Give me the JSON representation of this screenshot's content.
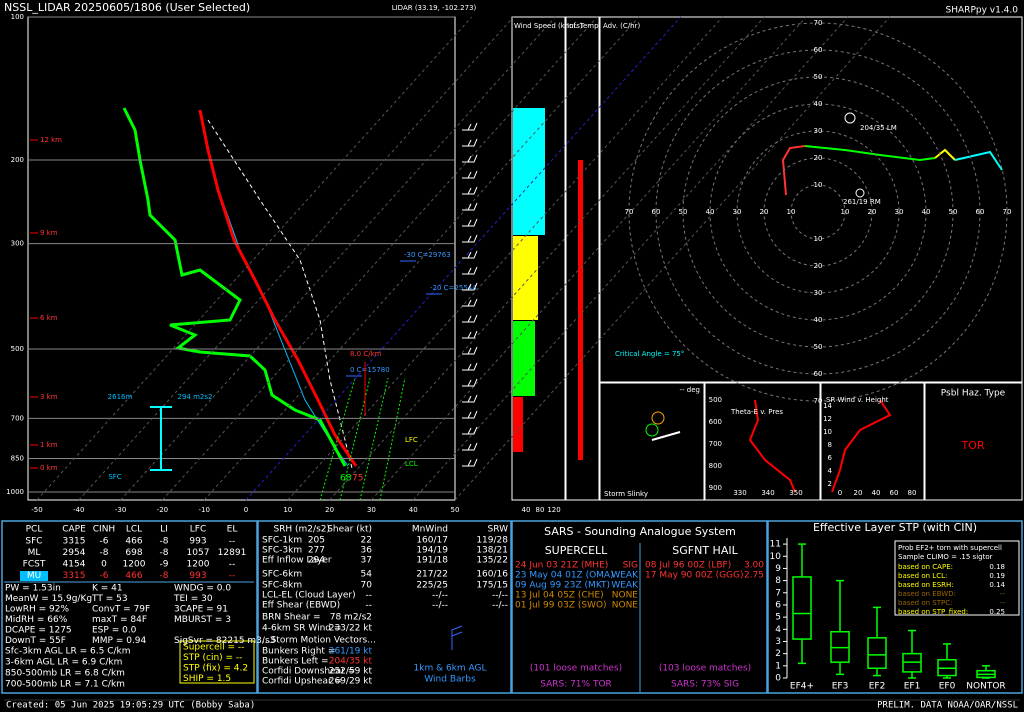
{
  "header": {
    "title": "NSSL_LIDAR  20250605/1806  (User Selected)",
    "location": "LIDAR (33.19, -102.273)",
    "version": "SHARPpy v1.4.0"
  },
  "skewt": {
    "pressure_labels": [
      100,
      200,
      300,
      500,
      700,
      850,
      1000
    ],
    "temp_labels": [
      -50,
      -40,
      -30,
      -20,
      -10,
      0,
      10,
      20,
      30,
      40,
      50
    ],
    "height_labels": [
      "12 km",
      "9 km",
      "6 km",
      "3 km",
      "1 km",
      "0 km"
    ],
    "levels": [
      "-30 C=29763",
      "-20 C=25544",
      "0 C=15780"
    ],
    "lapse": "8.0 C/km",
    "layer_depth": "2616m",
    "layer_srh": "294 m2s2",
    "sfc": "SFC",
    "lfc": "LFC",
    "lcl": "LCL",
    "sfc_dew": "68",
    "sfc_temp": "75"
  },
  "wind_panel": {
    "speed_title": "Wind Speed (knots)",
    "adv_title": "Inf. Temp. Adv. (C/hr)",
    "ticks": [
      40,
      80,
      120
    ]
  },
  "hodograph": {
    "rings": [
      10,
      20,
      30,
      40,
      50,
      60,
      70
    ],
    "lm": "204/35 LM",
    "rm": "261/19 RM",
    "critical": "Critical Angle = 75°"
  },
  "insets": {
    "slinky_deg": "-- deg",
    "slinky": "Storm Slinky",
    "theta_title": "Theta-E v. Pres",
    "theta_y": [
      500,
      600,
      700,
      800,
      900
    ],
    "theta_x": [
      330,
      340,
      350
    ],
    "srw_title": "SR Wind v. Height",
    "srw_y": [
      2,
      4,
      6,
      8,
      10,
      12,
      14
    ],
    "srw_x": [
      0,
      20,
      40,
      60,
      80
    ],
    "haz_title": "Psbl Haz. Type",
    "haz": "TOR"
  },
  "parcels": {
    "header": [
      "PCL",
      "CAPE",
      "CINH",
      "LCL",
      "LI",
      "LFC",
      "EL"
    ],
    "rows": [
      [
        "SFC",
        3315,
        -6,
        466,
        -8,
        993,
        "--"
      ],
      [
        "ML",
        2954,
        -8,
        698,
        -8,
        1057,
        12891
      ],
      [
        "FCST",
        4154,
        0,
        1200,
        -9,
        1200,
        "--"
      ],
      [
        "MU",
        3315,
        -6,
        466,
        -8,
        993,
        "--"
      ]
    ]
  },
  "thermo": [
    [
      "PW = 1.53in",
      "K = 41",
      "WNDG = 0.0"
    ],
    [
      "MeanW = 15.9g/Kg",
      "TT = 53",
      "TEI = 30"
    ],
    [
      "LowRH = 92%",
      "ConvT = 79F",
      "3CAPE = 91"
    ],
    [
      "MidRH = 66%",
      "maxT = 84F",
      "MBURST = 3"
    ],
    [
      "DCAPE = 1275",
      "ESP = 0.0"
    ],
    [
      "DownT = 55F",
      "MMP = 0.94",
      "SigSvr = 82215 m3/s3"
    ]
  ],
  "lapse_rates": [
    "Sfc-3km AGL LR = 6.5 C/km",
    "3-6km AGL LR = 6.9 C/km",
    "850-500mb LR = 6.8 C/km",
    "700-500mb LR = 7.1 C/km"
  ],
  "indices": [
    "Supercell = --",
    "STP (cin) = --",
    "STP (fix) = 4.2",
    "SHIP = 1.5"
  ],
  "kinematics": {
    "header": [
      "SRH (m2/s2)",
      "Shear (kt)",
      "MnWind",
      "SRW"
    ],
    "rows": [
      [
        "SFC-1km",
        205,
        22,
        "160/17",
        "119/28"
      ],
      [
        "SFC-3km",
        277,
        36,
        "194/19",
        "138/21"
      ],
      [
        "Eff Inflow Layer",
        294,
        37,
        "191/18",
        "135/22"
      ],
      [
        "SFC-6km",
        null,
        54,
        "217/22",
        "160/16"
      ],
      [
        "SFC-8km",
        null,
        70,
        "225/25",
        "175/15"
      ],
      [
        "LCL-EL (Cloud Layer)",
        null,
        "--",
        "--/--",
        "--/--"
      ],
      [
        "Eff Shear (EBWD)",
        null,
        "--",
        "--/--",
        "--/--"
      ]
    ],
    "extra": [
      [
        "BRN Shear =",
        "78 m2/s2"
      ],
      [
        "4-6km SR Wind =",
        "233/22 kt"
      ]
    ],
    "motion_title": "...Storm Motion Vectors...",
    "motion": [
      [
        "Bunkers Right =",
        "261/19 kt"
      ],
      [
        "Bunkers Left =",
        "204/35 kt"
      ],
      [
        "Corfidi Downshear =",
        "252/59 kt"
      ],
      [
        "Corfidi Upshear =",
        "269/29 kt"
      ]
    ],
    "barbs": [
      "1km & 6km AGL",
      "Wind Barbs"
    ]
  },
  "sars": {
    "title": "SARS - Sounding Analogue System",
    "supercell_title": "SUPERCELL",
    "hail_title": "SGFNT HAIL",
    "supercell": [
      [
        "24 Jun 03 21Z (MHE)",
        "SIG"
      ],
      [
        "23 May 04 01Z (OMA)",
        "WEAK"
      ],
      [
        "09 Aug 99 23Z (MKT)",
        "WEAK"
      ],
      [
        "13 Jul 04 05Z (CHE)",
        "NONE"
      ],
      [
        "01 Jul 99 03Z (SWO)",
        "NONE"
      ]
    ],
    "hail": [
      [
        "08 Jul 96 00Z (LBF)",
        "3.00"
      ],
      [
        "17 May 90 00Z (GGG)",
        "2.75"
      ]
    ],
    "supercell_matches": "(101 loose matches)",
    "supercell_sars": "SARS: 71% TOR",
    "hail_matches": "(103 loose matches)",
    "hail_sars": "SARS: 73% SIG"
  },
  "chart_data": {
    "type": "box",
    "title": "Effective Layer STP (with CIN)",
    "categories": [
      "EF4+",
      "EF3",
      "EF2",
      "EF1",
      "EF0",
      "NONTOR"
    ],
    "low": [
      1.2,
      0.3,
      0.2,
      0,
      0,
      0
    ],
    "q1": [
      3.2,
      1.3,
      0.8,
      0.5,
      0.2,
      0.05
    ],
    "median": [
      5.3,
      2.5,
      1.9,
      1.3,
      0.8,
      0.3
    ],
    "q3": [
      8.3,
      3.8,
      3.3,
      2.0,
      1.5,
      0.6
    ],
    "high": [
      11,
      8,
      5.8,
      3.9,
      2.8,
      1
    ],
    "color": "#00ff00",
    "ylim": [
      0,
      11.5
    ],
    "yticks": [
      0,
      1,
      2,
      3,
      4,
      5,
      6,
      7,
      8,
      9,
      10,
      11
    ],
    "legend": {
      "title": [
        "Prob EF2+ torn with supercell",
        "Sample CLIMO = .15 sigtor"
      ],
      "rows": [
        [
          "based on CAPE:",
          0.18
        ],
        [
          "based on LCL:",
          0.19
        ],
        [
          "based on ESRH:",
          0.14
        ],
        [
          "based on EBWD:",
          "--"
        ],
        [
          "based on STPC:",
          "--"
        ],
        [
          "based on STP_fixed:",
          0.25
        ]
      ]
    }
  },
  "footer": {
    "created": "Created: 05 Jun 2025 19:05:29 UTC    (Bobby Saba)",
    "credit": "PRELIM. DATA NOAA/OAR/NSSL"
  }
}
